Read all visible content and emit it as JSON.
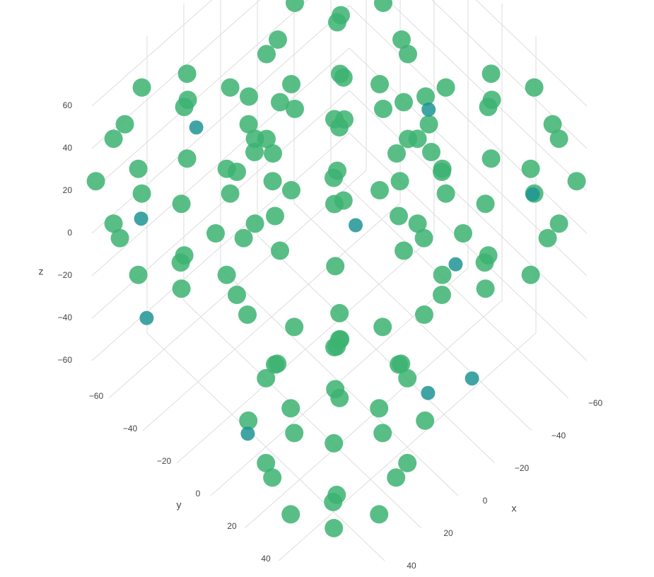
{
  "chart_data": {
    "type": "scatter3d",
    "x_label": "x",
    "y_label": "y",
    "z_label": "z",
    "xlim": [
      -70,
      70
    ],
    "ylim": [
      -70,
      70
    ],
    "zlim": [
      -70,
      70
    ],
    "xticks": [
      {
        "value": -60,
        "label": "−60"
      },
      {
        "value": -40,
        "label": "−40"
      },
      {
        "value": -20,
        "label": "−20"
      },
      0,
      20,
      40
    ],
    "yticks": [
      {
        "value": -60,
        "label": "−60"
      },
      {
        "value": -40,
        "label": "−40"
      },
      {
        "value": -20,
        "label": "−20"
      },
      0,
      20,
      40
    ],
    "zticks": [
      {
        "value": -60,
        "label": "−60"
      },
      {
        "value": -40,
        "label": "−40"
      },
      {
        "value": -20,
        "label": "−20"
      },
      0,
      20,
      40,
      60
    ],
    "grid": true,
    "series": [
      {
        "color": "#3cb371",
        "x": [
          50,
          -50,
          0,
          0,
          0,
          0,
          35,
          35,
          -35,
          -35,
          35,
          35,
          -35,
          -35,
          0,
          0,
          0,
          0,
          29,
          29,
          29,
          29,
          -29,
          -29,
          -29,
          -29,
          14,
          -56,
          -21,
          -21,
          -21,
          -21,
          4,
          4,
          -46,
          -46,
          4,
          4,
          -46,
          -46,
          -21,
          -21,
          -21,
          -21,
          -1,
          -1,
          -1,
          -1,
          -41,
          -41,
          -41,
          -41,
          76,
          6,
          41,
          41,
          41,
          41,
          66,
          66,
          16,
          16,
          66,
          66,
          16,
          16,
          41,
          41,
          41,
          41,
          61,
          61,
          61,
          61,
          21,
          21,
          21,
          21,
          -10,
          -80,
          -45,
          -45,
          -45,
          -45,
          -20,
          -20,
          -70,
          -70,
          -20,
          -20,
          -70,
          -70,
          -45,
          -45,
          -45,
          -45,
          -25,
          -25,
          -25,
          -25,
          -65,
          -65,
          -65,
          -65,
          66,
          -4,
          31,
          31,
          31,
          31,
          56,
          56,
          6,
          6,
          56,
          56,
          6,
          6,
          31,
          31,
          31,
          31,
          51,
          51,
          51,
          51,
          11,
          11,
          11,
          11
        ],
        "y": [
          0,
          0,
          50,
          -50,
          0,
          0,
          35,
          -35,
          35,
          -35,
          0,
          0,
          0,
          0,
          35,
          35,
          -35,
          -35,
          29,
          29,
          -29,
          -29,
          29,
          29,
          -29,
          -29,
          -24,
          -24,
          11,
          -59,
          -24,
          -24,
          1,
          -49,
          1,
          -49,
          -24,
          -24,
          -24,
          -24,
          1,
          1,
          -49,
          -49,
          -4,
          -4,
          -44,
          -44,
          -4,
          -4,
          -44,
          -44,
          -47,
          -47,
          -12,
          -82,
          -47,
          -47,
          -22,
          -72,
          -22,
          -72,
          -47,
          -47,
          -47,
          -47,
          -22,
          -22,
          -72,
          -72,
          -27,
          -27,
          -67,
          -67,
          -27,
          -27,
          -67,
          -67,
          39,
          39,
          74,
          4,
          39,
          39,
          64,
          14,
          64,
          14,
          39,
          39,
          39,
          39,
          64,
          64,
          14,
          14,
          59,
          59,
          19,
          19,
          59,
          59,
          19,
          19,
          32,
          32,
          67,
          -3,
          32,
          32,
          57,
          7,
          57,
          7,
          32,
          32,
          32,
          32,
          57,
          57,
          7,
          7,
          52,
          52,
          12,
          12,
          52,
          52,
          12,
          12
        ],
        "z": [
          0,
          0,
          0,
          0,
          50,
          -50,
          0,
          0,
          0,
          0,
          35,
          -35,
          35,
          -35,
          35,
          -35,
          35,
          -35,
          29,
          -29,
          29,
          -29,
          29,
          -29,
          29,
          -29,
          30,
          30,
          30,
          30,
          65,
          -5,
          30,
          30,
          30,
          30,
          55,
          5,
          55,
          5,
          55,
          5,
          55,
          5,
          50,
          10,
          50,
          10,
          50,
          10,
          50,
          10,
          20,
          20,
          20,
          20,
          55,
          -15,
          20,
          20,
          20,
          20,
          45,
          -5,
          45,
          -5,
          45,
          -5,
          45,
          -5,
          40,
          0,
          40,
          0,
          40,
          0,
          40,
          0,
          20,
          20,
          20,
          20,
          55,
          -15,
          20,
          20,
          20,
          20,
          45,
          -5,
          45,
          -5,
          45,
          -5,
          45,
          -5,
          40,
          0,
          40,
          0,
          40,
          0,
          40,
          0,
          -40,
          -40,
          -40,
          -40,
          -5,
          -75,
          -40,
          -40,
          -40,
          -40,
          -15,
          -65,
          -15,
          -65,
          -15,
          -65,
          -15,
          -65,
          -20,
          -60,
          -20,
          -60,
          -20,
          -60,
          -20,
          -60
        ]
      },
      {
        "color": "#1f9494",
        "x": [
          28,
          58,
          67,
          60,
          -7,
          -43,
          -60,
          -30,
          -3,
          -26
        ],
        "y": [
          -54,
          -54,
          -41,
          11,
          2,
          6,
          49,
          36,
          49,
          50
        ],
        "z": [
          30,
          10,
          -20,
          -40,
          0,
          30,
          10,
          -10,
          -40,
          -50
        ]
      }
    ]
  }
}
